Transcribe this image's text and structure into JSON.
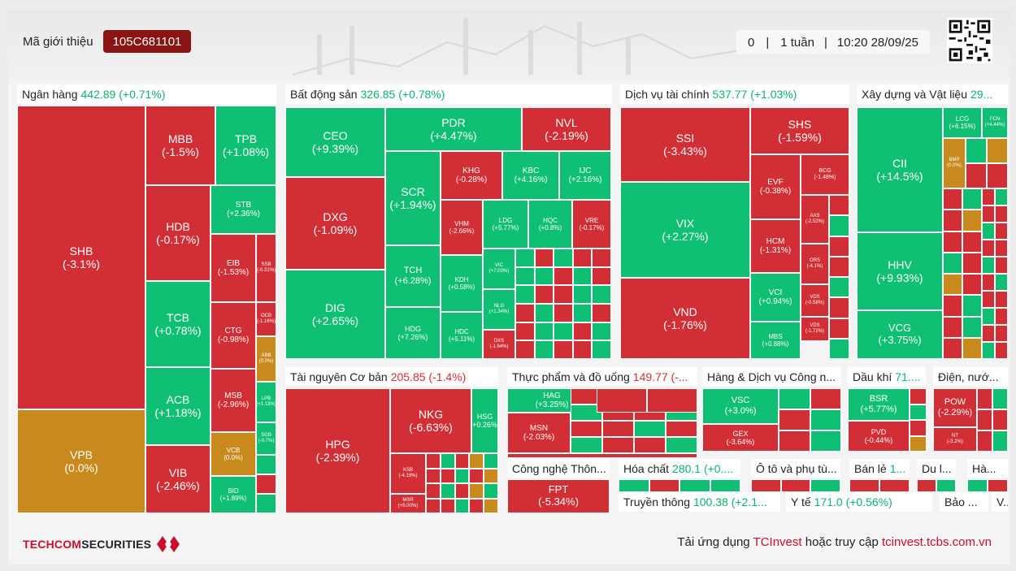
{
  "header": {
    "ref_label": "Mã giới thiệu",
    "ref_code": "105C681101",
    "count": "0",
    "period": "1 tuần",
    "timestamp": "10:20 28/09/25"
  },
  "colors": {
    "up": "#0fbf74",
    "down": "#d12e35",
    "flat": "#c98a1d"
  },
  "sectors": [
    {
      "name": "Ngân hàng",
      "value": "442.89 (+0.71%)",
      "dir": "up"
    },
    {
      "name": "Bất động sản",
      "value": "326.85 (+0.78%)",
      "dir": "up"
    },
    {
      "name": "Dịch vụ tài chính",
      "value": "537.77 (+1.03%)",
      "dir": "up"
    },
    {
      "name": "Xây dựng và Vật liệu",
      "value": "29...",
      "dir": "up"
    },
    {
      "name": "Tài nguyên Cơ bản",
      "value": "205.85 (-1.4%)",
      "dir": "down"
    },
    {
      "name": "Thực phẩm và đồ uống",
      "value": "149.77 (-...",
      "dir": "down"
    },
    {
      "name": "Hàng & Dịch vụ Công n...",
      "value": "",
      "dir": "up"
    },
    {
      "name": "Dầu khí",
      "value": "71....",
      "dir": "up"
    },
    {
      "name": "Điện, nướ...",
      "value": "",
      "dir": "down"
    },
    {
      "name": "Công nghệ Thôn...",
      "value": "",
      "dir": "down"
    },
    {
      "name": "Hóa chất",
      "value": "280.1 (+0....",
      "dir": "up"
    },
    {
      "name": "Ô tô và phụ tù...",
      "value": "",
      "dir": "down"
    },
    {
      "name": "Bán lẻ",
      "value": "1...",
      "dir": "up"
    },
    {
      "name": "Du l...",
      "value": "",
      "dir": "up"
    },
    {
      "name": "Hà...",
      "value": "",
      "dir": "up"
    },
    {
      "name": "Truyền thông",
      "value": "100.38 (+2.1...",
      "dir": "up"
    },
    {
      "name": "Y tế",
      "value": "171.0 (+0.56%)",
      "dir": "up"
    },
    {
      "name": "Bảo ...",
      "value": "",
      "dir": "up"
    },
    {
      "name": "V...",
      "value": "",
      "dir": "up"
    }
  ],
  "tiles": {
    "SHB": "-3.1%",
    "VPB": "0.0%",
    "MBB": "-1.5%",
    "TPB": "+1.08%",
    "HDB": "-0.17%",
    "STB": "+2.36%",
    "EIB": "-1.53%",
    "SSB": "-0.31%",
    "TCB": "+0.78%",
    "CTG": "-0.98%",
    "OCB": "-1.16%",
    "ABB": "0.0%",
    "ACB": "+1.18%",
    "MSB": "-2.96%",
    "LPB": "+1.13%",
    "SGB": "-0.7%",
    "VIB": "-2.46%",
    "VCB": "0.0%",
    "BID": "+1.89%",
    "CEO": "+9.39%",
    "PDR": "+4.47%",
    "NVL": "-2.19%",
    "DXG": "-1.09%",
    "SCR": "+1.94%",
    "KHG": "-0.28%",
    "KBC": "+4.16%",
    "IJC": "+2.16%",
    "VHM": "-2.66%",
    "LDG": "+5.77%",
    "HQC": "+0.8%",
    "VRE": "-0.17%",
    "DIG": "+2.65%",
    "TCH": "+6.28%",
    "KDH": "+0.58%",
    "VIC": "+7.03%",
    "NLG": "+1.34%",
    "HDG": "+7.26%",
    "HDC": "+5.11%",
    "DXS": "-1.64%",
    "SSI": "-3.43%",
    "SHS": "-1.59%",
    "EVF": "-0.38%",
    "BCG": "-1.48%",
    "VIX": "+2.27%",
    "AAS": "-2.52%",
    "HCM": "-1.31%",
    "ORS": "-4.1%",
    "VCI": "+0.94%",
    "VDS": "-0.58%",
    "VND": "-1.76%",
    "MBS": "+0.88%",
    "VDS2": "-1.72%",
    "CII": "+14.5%",
    "LCG": "+6.15%",
    "FCN": "+4.44%",
    "BMP": "0.0%",
    "HHV": "+9.93%",
    "VCG": "+3.75%",
    "HPG": "-2.39%",
    "NKG": "-6.63%",
    "HSG": "+0.26%",
    "KSB": "-4.19%",
    "MSR": "+5.00%",
    "HAG": "+3.25%",
    "MSN": "-2.03%",
    "VSC": "+3.0%",
    "GEX": "-3.64%",
    "BSR": "+5.77%",
    "PVD": "-0.44%",
    "POW": "-2.29%",
    "NT2": "-3.2%",
    "FPT": "-5.34%"
  },
  "footer": {
    "brand_a": "TECHCOM",
    "brand_b": "SECURITIES",
    "text_a": "Tải ứng dụng ",
    "text_b": "TCInvest",
    "text_c": " hoặc truy cập ",
    "text_d": "tcinvest.tcbs.com.vn"
  }
}
